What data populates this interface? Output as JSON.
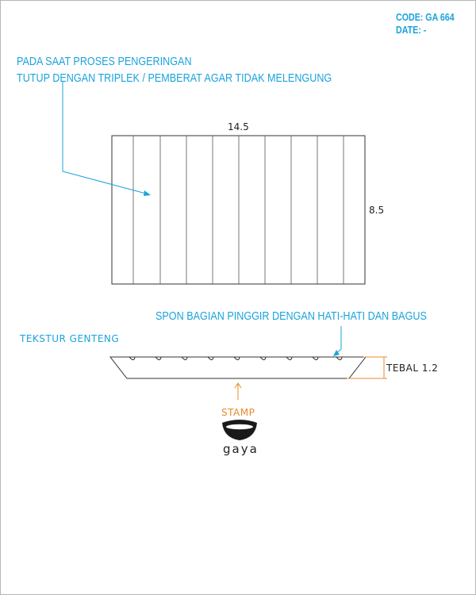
{
  "colors": {
    "blue": "#1aa3dc",
    "orange": "#e8892c",
    "line": "#333333",
    "text": "#222222"
  },
  "header": {
    "code": "CODE: GA 664",
    "date": "DATE: -"
  },
  "notes": {
    "drying_line1": "PADA SAAT PROSES PENGERINGAN",
    "drying_line2": "TUTUP DENGAN TRIPLEK / PEMBERAT AGAR TIDAK MELENGUNG",
    "sponge": "SPON BAGIAN PINGGIR DENGAN HATI-HATI DAN BAGUS"
  },
  "top_view": {
    "width_label": "14.5",
    "height_label": "8.5",
    "stripe_count": 9
  },
  "section_view": {
    "texture_label": "TEKSTUR GENTENG",
    "thickness_label": "TEBAL 1.2",
    "groove_count": 9
  },
  "stamp": {
    "label": "STAMP",
    "logo_text": "gaya",
    "logo_icon": "bowl-icon"
  }
}
